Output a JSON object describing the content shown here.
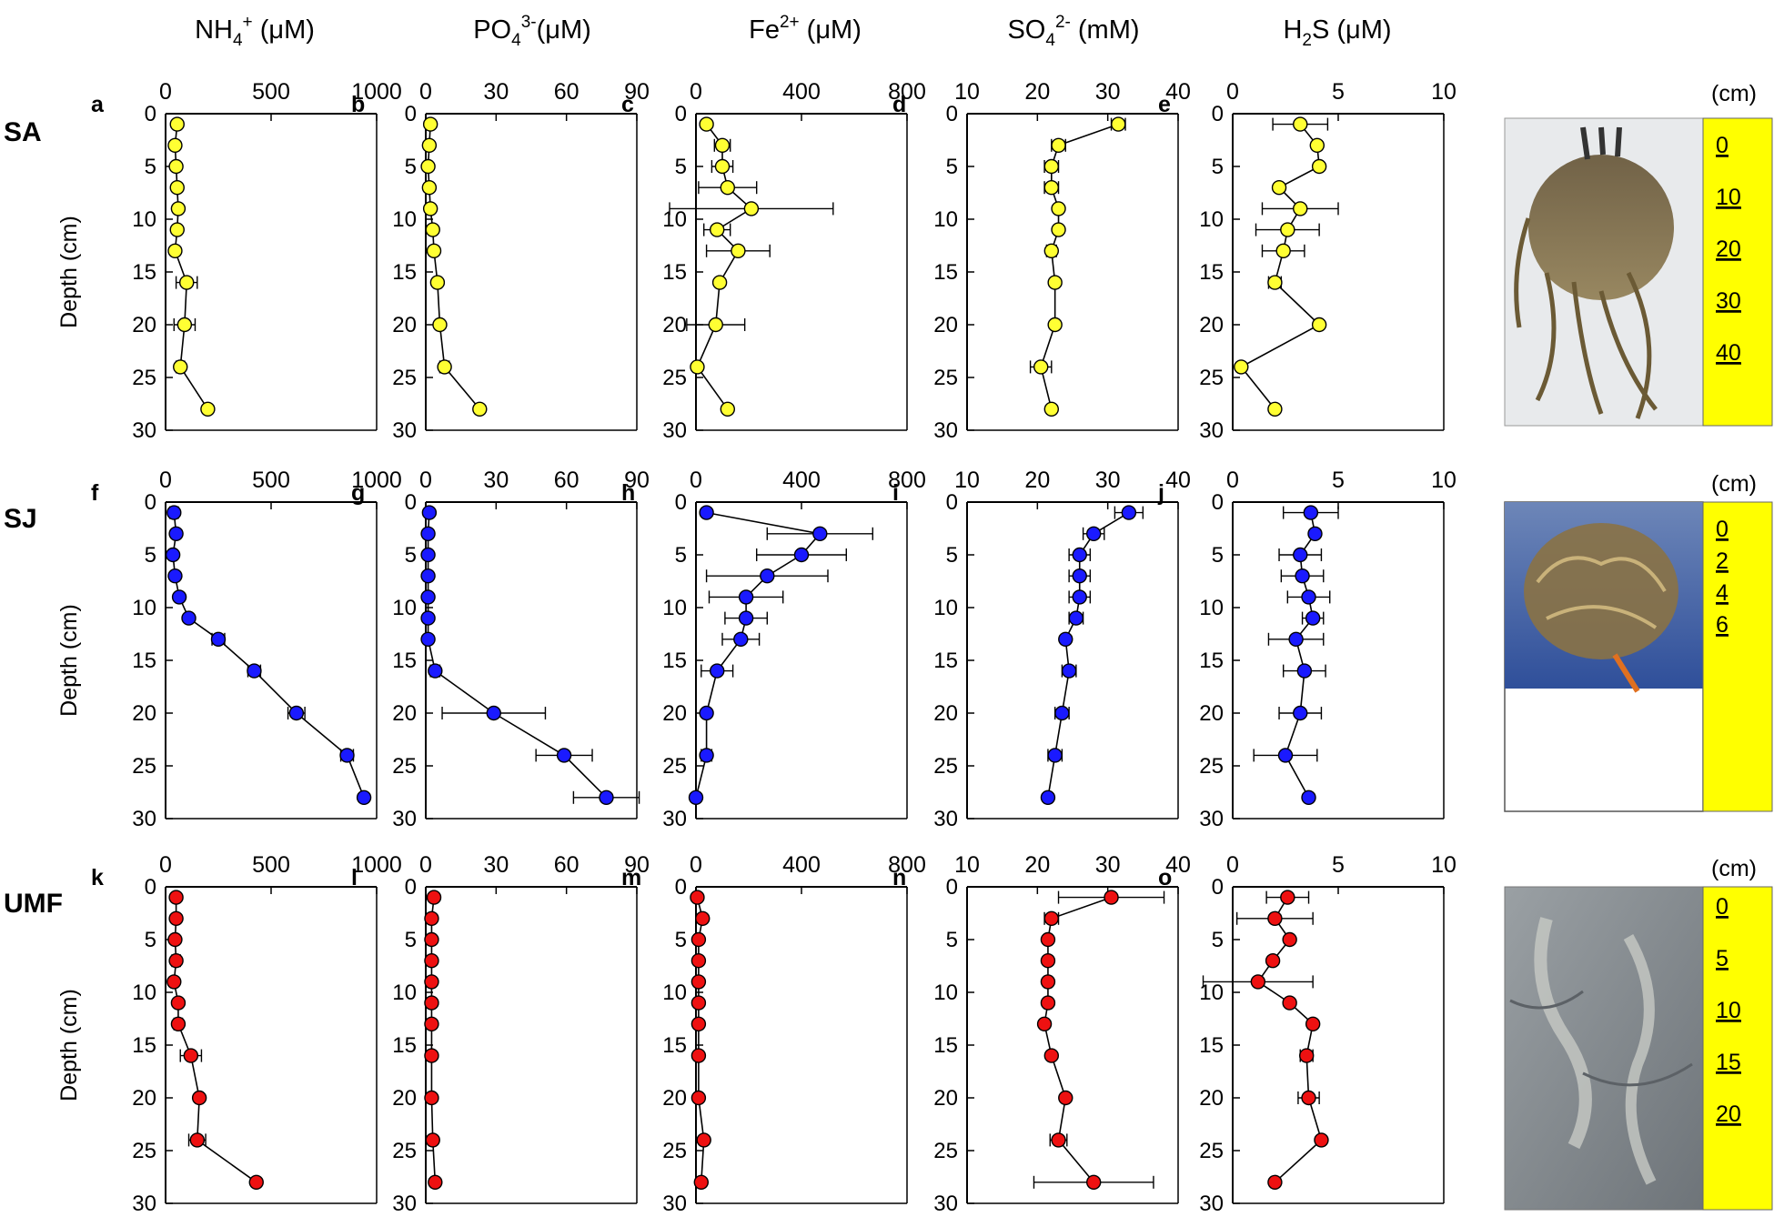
{
  "figure": {
    "depth_axis": {
      "label": "Depth (cm)",
      "ticks": [
        0,
        5,
        10,
        15,
        20,
        25,
        30
      ],
      "range": [
        0,
        30
      ]
    },
    "columns": [
      {
        "key": "nh4",
        "title_base": "NH",
        "title_sub": "4",
        "title_sup": "+",
        "title_unit": " (μM)",
        "range": [
          0,
          1000
        ],
        "ticks": [
          0,
          500,
          1000
        ]
      },
      {
        "key": "po4",
        "title_base": "PO",
        "title_sub": "4",
        "title_sup": "3-",
        "title_unit": "(μM)",
        "range": [
          0,
          90
        ],
        "ticks": [
          0,
          30,
          60,
          90
        ]
      },
      {
        "key": "fe",
        "title_base": "Fe",
        "title_sub": "",
        "title_sup": "2+",
        "title_unit": " (μM)",
        "range": [
          0,
          800
        ],
        "ticks": [
          0,
          400,
          800
        ]
      },
      {
        "key": "so4",
        "title_base": "SO",
        "title_sub": "4",
        "title_sup": "2-",
        "title_unit": " (mM)",
        "range": [
          10,
          40
        ],
        "ticks": [
          10,
          20,
          30,
          40
        ]
      },
      {
        "key": "h2s",
        "title_base": "H",
        "title_sub": "2",
        "title_sup": "",
        "title_unit": "S (μM)",
        "range": [
          0,
          10
        ],
        "ticks": [
          0,
          5,
          10
        ]
      }
    ],
    "photo_unit_label": "(cm)"
  },
  "chart_data": [
    {
      "type": "scatter",
      "site": "SA",
      "marker_color": "#ffff33",
      "panel_letters": [
        "a",
        "b",
        "c",
        "d",
        "e"
      ],
      "photo_scale": [
        "0",
        "10",
        "20",
        "30",
        "40"
      ],
      "series": {
        "nh4": {
          "depth": [
            1,
            3,
            5,
            7,
            9,
            11,
            13,
            16,
            20,
            24,
            28
          ],
          "values": [
            55,
            45,
            50,
            55,
            60,
            55,
            45,
            100,
            90,
            70,
            200
          ],
          "errors": [
            0,
            0,
            0,
            0,
            0,
            0,
            0,
            50,
            50,
            20,
            0
          ]
        },
        "po4": {
          "depth": [
            1,
            3,
            5,
            7,
            9,
            11,
            13,
            16,
            20,
            24,
            28
          ],
          "values": [
            2,
            1.5,
            1,
            1.5,
            2,
            3,
            3.5,
            5,
            6,
            8,
            23
          ],
          "errors": [
            0,
            0,
            0,
            0,
            0,
            0,
            0,
            1.5,
            1.5,
            2,
            0
          ]
        },
        "fe": {
          "depth": [
            1,
            3,
            5,
            7,
            9,
            11,
            13,
            16,
            20,
            24,
            28
          ],
          "values": [
            40,
            100,
            100,
            120,
            210,
            80,
            160,
            90,
            75,
            5,
            120
          ],
          "errors": [
            0,
            30,
            40,
            110,
            310,
            50,
            120,
            0,
            110,
            0,
            0
          ]
        },
        "so4": {
          "depth": [
            1,
            3,
            5,
            7,
            9,
            11,
            13,
            16,
            20,
            24,
            28
          ],
          "values": [
            31.5,
            23,
            22,
            22,
            23,
            23,
            22,
            22.5,
            22.5,
            20.5,
            22
          ],
          "errors": [
            1,
            1,
            1,
            1,
            0.5,
            0.5,
            0.7,
            0,
            0,
            1.5,
            0
          ]
        },
        "h2s": {
          "depth": [
            1,
            3,
            5,
            7,
            9,
            11,
            13,
            16,
            20,
            24,
            28
          ],
          "values": [
            3.2,
            4,
            4.1,
            2.2,
            3.2,
            2.6,
            2.4,
            2,
            4.1,
            0.4,
            2
          ],
          "errors": [
            1.3,
            0,
            0,
            0,
            1.8,
            1.5,
            1,
            0.3,
            0,
            0,
            0
          ]
        }
      }
    },
    {
      "type": "scatter",
      "site": "SJ",
      "marker_color": "#1a1aff",
      "panel_letters": [
        "f",
        "g",
        "h",
        "i",
        "j"
      ],
      "photo_scale": [
        "0",
        "2",
        "4",
        "6"
      ],
      "series": {
        "nh4": {
          "depth": [
            1,
            3,
            5,
            7,
            9,
            11,
            13,
            16,
            20,
            24,
            28
          ],
          "values": [
            40,
            50,
            35,
            45,
            65,
            110,
            250,
            420,
            620,
            860,
            940
          ],
          "errors": [
            20,
            0,
            0,
            0,
            0,
            0,
            30,
            30,
            40,
            30,
            0
          ]
        },
        "po4": {
          "depth": [
            1,
            3,
            5,
            7,
            9,
            11,
            13,
            16,
            20,
            24,
            28
          ],
          "values": [
            1.5,
            1,
            1,
            1,
            1,
            1,
            1,
            4,
            29,
            59,
            77
          ],
          "errors": [
            0,
            0,
            0,
            0,
            0,
            0,
            0,
            2,
            22,
            12,
            14
          ]
        },
        "fe": {
          "depth": [
            1,
            3,
            5,
            7,
            9,
            11,
            13,
            16,
            20,
            24,
            28
          ],
          "values": [
            40,
            470,
            400,
            270,
            190,
            190,
            170,
            80,
            40,
            40,
            0
          ],
          "errors": [
            0,
            200,
            170,
            230,
            140,
            80,
            70,
            60,
            0,
            20,
            0
          ]
        },
        "so4": {
          "depth": [
            1,
            3,
            5,
            7,
            9,
            11,
            13,
            16,
            20,
            24,
            28
          ],
          "values": [
            33,
            28,
            26,
            26,
            26,
            25.5,
            24,
            24.5,
            23.5,
            22.5,
            21.5
          ],
          "errors": [
            2,
            1.5,
            1.5,
            1.5,
            1.5,
            1,
            0,
            1,
            1,
            1,
            0.5
          ]
        },
        "h2s": {
          "depth": [
            1,
            3,
            5,
            7,
            9,
            11,
            13,
            16,
            20,
            24,
            28
          ],
          "values": [
            3.7,
            3.9,
            3.2,
            3.3,
            3.6,
            3.8,
            3,
            3.4,
            3.2,
            2.5,
            3.6
          ],
          "errors": [
            1.3,
            0,
            1,
            1,
            1,
            0.5,
            1.3,
            1,
            1,
            1.5,
            0
          ]
        }
      }
    },
    {
      "type": "scatter",
      "site": "UMF",
      "marker_color": "#ee1111",
      "panel_letters": [
        "k",
        "l",
        "m",
        "n",
        "o"
      ],
      "photo_scale": [
        "0",
        "5",
        "10",
        "15",
        "20"
      ],
      "series": {
        "nh4": {
          "depth": [
            1,
            3,
            5,
            7,
            9,
            11,
            13,
            16,
            20,
            24,
            28
          ],
          "values": [
            50,
            50,
            45,
            50,
            40,
            60,
            60,
            120,
            160,
            150,
            430
          ],
          "errors": [
            0,
            0,
            0,
            20,
            0,
            0,
            20,
            50,
            0,
            40,
            0
          ]
        },
        "po4": {
          "depth": [
            1,
            3,
            5,
            7,
            9,
            11,
            13,
            16,
            20,
            24,
            28
          ],
          "values": [
            3.5,
            2.5,
            2.5,
            2.5,
            2.5,
            2.5,
            2.5,
            2.5,
            2.5,
            3,
            4
          ],
          "errors": [
            0,
            0,
            0,
            0,
            0,
            0,
            0,
            0,
            0,
            0,
            0
          ]
        },
        "fe": {
          "depth": [
            1,
            3,
            5,
            7,
            9,
            11,
            13,
            16,
            20,
            24,
            28
          ],
          "values": [
            5,
            25,
            10,
            10,
            10,
            10,
            10,
            10,
            10,
            30,
            20
          ],
          "errors": [
            0,
            0,
            0,
            0,
            0,
            0,
            0,
            0,
            0,
            0,
            0
          ]
        },
        "so4": {
          "depth": [
            1,
            3,
            5,
            7,
            9,
            11,
            13,
            16,
            20,
            24,
            28
          ],
          "values": [
            30.5,
            22,
            21.5,
            21.5,
            21.5,
            21.5,
            21,
            22,
            24,
            23,
            28
          ],
          "errors": [
            7.5,
            1,
            0,
            0,
            0.5,
            0.5,
            0,
            0,
            0,
            1.2,
            8.5
          ]
        },
        "h2s": {
          "depth": [
            1,
            3,
            5,
            7,
            9,
            11,
            13,
            16,
            20,
            24,
            28
          ],
          "values": [
            2.6,
            2,
            2.7,
            1.9,
            1.2,
            2.7,
            3.8,
            3.5,
            3.6,
            4.2,
            2
          ],
          "errors": [
            1,
            1.8,
            0,
            0,
            2.6,
            0,
            0,
            0.3,
            0.5,
            0,
            0
          ]
        }
      }
    }
  ]
}
